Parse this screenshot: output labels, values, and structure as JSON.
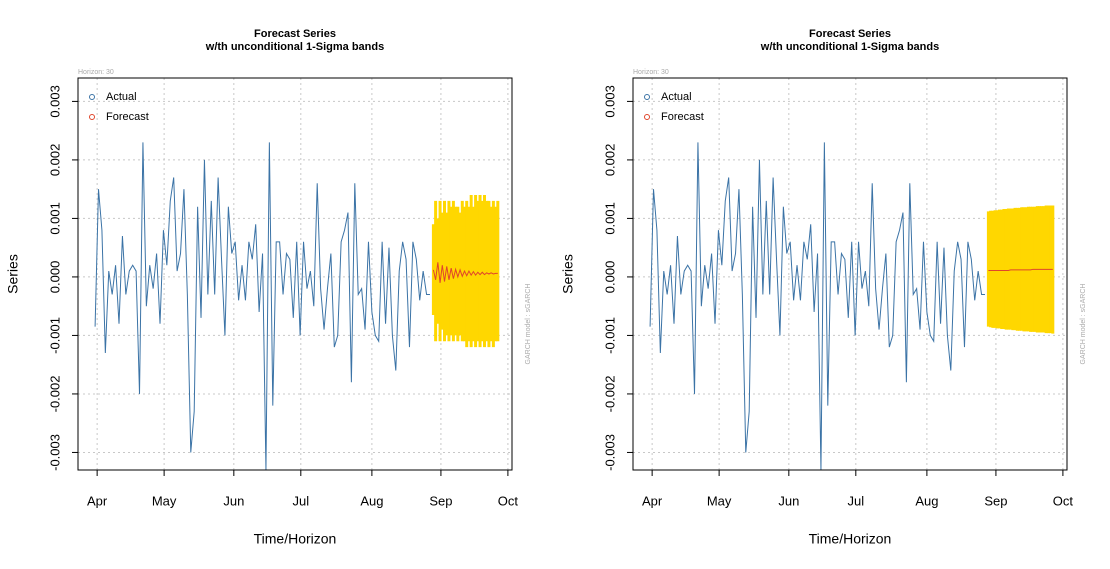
{
  "chart_data": [
    {
      "type": "line",
      "title": "Forecast Series",
      "subtitle": "w/th unconditional 1-Sigma bands",
      "x_label": "Time/Horizon",
      "y_label": "Series",
      "horizon_note": "Horizon: 30",
      "model_note": "GARCH model : sGARCH",
      "xlim": [
        -5,
        122
      ],
      "ylim": [
        -0.0033,
        0.0034
      ],
      "grid": true,
      "legend": "top-left",
      "xticks": [
        {
          "value": 0.6,
          "label": "Apr"
        },
        {
          "value": 20.2,
          "label": "May"
        },
        {
          "value": 40.6,
          "label": "Jun"
        },
        {
          "value": 60.2,
          "label": "Jul"
        },
        {
          "value": 81,
          "label": "Aug"
        },
        {
          "value": 101.2,
          "label": "Sep"
        },
        {
          "value": 120.8,
          "label": "Oct"
        }
      ],
      "yticks": [
        -0.003,
        -0.002,
        -0.001,
        {
          "value": 0,
          "label": "0.000"
        },
        0.001,
        0.002,
        0.003
      ],
      "series": [
        {
          "name": "Actual",
          "color": "#3b73a6",
          "x": [
            0,
            1,
            2,
            3,
            4,
            5,
            6,
            7,
            8,
            9,
            10,
            11,
            12,
            13,
            14,
            15,
            16,
            17,
            18,
            19,
            20,
            21,
            22,
            23,
            24,
            25,
            26,
            27,
            28,
            29,
            30,
            31,
            32,
            33,
            34,
            35,
            36,
            37,
            38,
            39,
            40,
            41,
            42,
            43,
            44,
            45,
            46,
            47,
            48,
            49,
            50,
            51,
            52,
            53,
            54,
            55,
            56,
            57,
            58,
            59,
            60,
            61,
            62,
            63,
            64,
            65,
            66,
            67,
            68,
            69,
            70,
            71,
            72,
            73,
            74,
            75,
            76,
            77,
            78,
            79,
            80,
            81,
            82,
            83,
            84,
            85,
            86,
            87,
            88,
            89,
            90,
            91,
            92,
            93,
            94,
            95,
            96,
            97,
            98
          ],
          "values": [
            -0.00085,
            0.0015,
            0.0008,
            -0.0013,
            0.0001,
            -0.0003,
            0.0002,
            -0.0008,
            0.0007,
            -0.0003,
            0.0001,
            0.0002,
            0.0001,
            -0.002,
            0.0023,
            -0.0005,
            0.0002,
            -0.0002,
            0.0004,
            -0.0008,
            0.0008,
            0.0002,
            0.0013,
            0.0017,
            0.0001,
            0.0004,
            0.0015,
            -0.0003,
            -0.003,
            -0.0023,
            0.0012,
            -0.0007,
            0.002,
            -0.0003,
            0.0013,
            -0.0003,
            0.0017,
            0.0003,
            -0.001,
            0.0012,
            0.0004,
            0.0006,
            -0.0004,
            0.0002,
            -0.0004,
            0.0006,
            0.0003,
            0.0009,
            -0.0006,
            0.0004,
            -0.0033,
            0.0023,
            -0.0022,
            0.0006,
            0.0006,
            -0.0003,
            0.0004,
            0.0003,
            -0.0007,
            0.0006,
            -0.001,
            0.0006,
            -0.0002,
            0.0001,
            -0.0005,
            0.0016,
            -0.0002,
            -0.0009,
            -0.0002,
            0.0004,
            -0.0012,
            -0.001,
            0.0006,
            0.0008,
            0.0011,
            -0.0018,
            0.0016,
            -0.0003,
            -0.0002,
            -0.0009,
            0.0006,
            -0.0006,
            -0.001,
            -0.0011,
            0.0006,
            -0.0008,
            0.0005,
            -0.001,
            -0.0016,
            0.0001,
            0.0006,
            0.0003,
            -0.0012,
            0.0006,
            0.0003,
            -0.0004,
            0.0001,
            -0.0003,
            -0.0003
          ]
        },
        {
          "name": "Forecast",
          "color": "#e0452b",
          "x": [
            99,
            99.65,
            100.3,
            100.95,
            101.6,
            102.25,
            102.9,
            103.55,
            104.2,
            104.85,
            105.5,
            106.15,
            106.8,
            107.45,
            108.1,
            108.75,
            109.4,
            110.05,
            110.7,
            111.35,
            112,
            112.65,
            113.3,
            113.95,
            114.6,
            115.25,
            115.9,
            116.55,
            117.2,
            117.85
          ],
          "values": [
            0.00012,
            -5e-05,
            0.00025,
            -0.0001,
            0.0002,
            -8e-05,
            0.00018,
            -5e-05,
            0.00015,
            -3e-05,
            0.00013,
            0,
            0.00012,
            1e-05,
            0.0001,
            2e-05,
            0.0001,
            3e-05,
            9e-05,
            3e-05,
            8e-05,
            4e-05,
            8e-05,
            4e-05,
            7e-05,
            5e-05,
            7e-05,
            5e-05,
            6e-05,
            6e-05
          ]
        }
      ],
      "band": {
        "color": "#ffd700",
        "upper": [
          0.0009,
          0.0013,
          0.001,
          0.0013,
          0.0011,
          0.0013,
          0.0011,
          0.0013,
          0.0012,
          0.0013,
          0.0012,
          0.0012,
          0.0011,
          0.0013,
          0.0012,
          0.0013,
          0.0012,
          0.0014,
          0.0012,
          0.0014,
          0.0013,
          0.0014,
          0.0013,
          0.0014,
          0.0013,
          0.0013,
          0.0012,
          0.0013,
          0.0012,
          0.0013
        ],
        "lower": [
          -0.00065,
          -0.0011,
          -0.0008,
          -0.0011,
          -0.0009,
          -0.0011,
          -0.001,
          -0.0011,
          -0.001,
          -0.0011,
          -0.001,
          -0.0011,
          -0.001,
          -0.0011,
          -0.0011,
          -0.0012,
          -0.0011,
          -0.0012,
          -0.0011,
          -0.0012,
          -0.0011,
          -0.0012,
          -0.0011,
          -0.0012,
          -0.0011,
          -0.0012,
          -0.0011,
          -0.0012,
          -0.0011,
          -0.0011
        ]
      }
    },
    {
      "type": "line",
      "title": "Forecast Series",
      "subtitle": "w/th unconditional 1-Sigma bands",
      "x_label": "Time/Horizon",
      "y_label": "Series",
      "horizon_note": "Horizon: 30",
      "model_note": "GARCH model : sGARCH",
      "xlim": [
        -5,
        122
      ],
      "ylim": [
        -0.0033,
        0.0034
      ],
      "grid": true,
      "legend": "top-left",
      "xticks": [
        {
          "value": 0.6,
          "label": "Apr"
        },
        {
          "value": 20.2,
          "label": "May"
        },
        {
          "value": 40.6,
          "label": "Jun"
        },
        {
          "value": 60.2,
          "label": "Jul"
        },
        {
          "value": 81,
          "label": "Aug"
        },
        {
          "value": 101.2,
          "label": "Sep"
        },
        {
          "value": 120.8,
          "label": "Oct"
        }
      ],
      "yticks": [
        -0.003,
        -0.002,
        -0.001,
        {
          "value": 0,
          "label": "0.000"
        },
        0.001,
        0.002,
        0.003
      ],
      "series": [
        {
          "name": "Actual",
          "color": "#3b73a6",
          "x": [
            0,
            1,
            2,
            3,
            4,
            5,
            6,
            7,
            8,
            9,
            10,
            11,
            12,
            13,
            14,
            15,
            16,
            17,
            18,
            19,
            20,
            21,
            22,
            23,
            24,
            25,
            26,
            27,
            28,
            29,
            30,
            31,
            32,
            33,
            34,
            35,
            36,
            37,
            38,
            39,
            40,
            41,
            42,
            43,
            44,
            45,
            46,
            47,
            48,
            49,
            50,
            51,
            52,
            53,
            54,
            55,
            56,
            57,
            58,
            59,
            60,
            61,
            62,
            63,
            64,
            65,
            66,
            67,
            68,
            69,
            70,
            71,
            72,
            73,
            74,
            75,
            76,
            77,
            78,
            79,
            80,
            81,
            82,
            83,
            84,
            85,
            86,
            87,
            88,
            89,
            90,
            91,
            92,
            93,
            94,
            95,
            96,
            97,
            98
          ],
          "values": [
            -0.00085,
            0.0015,
            0.0008,
            -0.0013,
            0.0001,
            -0.0003,
            0.0002,
            -0.0008,
            0.0007,
            -0.0003,
            0.0001,
            0.0002,
            0.0001,
            -0.002,
            0.0023,
            -0.0005,
            0.0002,
            -0.0002,
            0.0004,
            -0.0008,
            0.0008,
            0.0002,
            0.0013,
            0.0017,
            0.0001,
            0.0004,
            0.0015,
            -0.0003,
            -0.003,
            -0.0023,
            0.0012,
            -0.0007,
            0.002,
            -0.0003,
            0.0013,
            -0.0003,
            0.0017,
            0.0003,
            -0.001,
            0.0012,
            0.0004,
            0.0006,
            -0.0004,
            0.0002,
            -0.0004,
            0.0006,
            0.0003,
            0.0009,
            -0.0006,
            0.0004,
            -0.0033,
            0.0023,
            -0.0022,
            0.0006,
            0.0006,
            -0.0003,
            0.0004,
            0.0003,
            -0.0007,
            0.0006,
            -0.001,
            0.0006,
            -0.0002,
            0.0001,
            -0.0005,
            0.0016,
            -0.0002,
            -0.0009,
            -0.0002,
            0.0004,
            -0.0012,
            -0.001,
            0.0006,
            0.0008,
            0.0011,
            -0.0018,
            0.0016,
            -0.0003,
            -0.0002,
            -0.0009,
            0.0006,
            -0.0006,
            -0.001,
            -0.0011,
            0.0006,
            -0.0008,
            0.0005,
            -0.001,
            -0.0016,
            0.0001,
            0.0006,
            0.0003,
            -0.0012,
            0.0006,
            0.0003,
            -0.0004,
            0.0001,
            -0.0003,
            -0.0003
          ]
        },
        {
          "name": "Forecast",
          "color": "#e0452b",
          "x": [
            99,
            99.65,
            100.3,
            100.95,
            101.6,
            102.25,
            102.9,
            103.55,
            104.2,
            104.85,
            105.5,
            106.15,
            106.8,
            107.45,
            108.1,
            108.75,
            109.4,
            110.05,
            110.7,
            111.35,
            112,
            112.65,
            113.3,
            113.95,
            114.6,
            115.25,
            115.9,
            116.55,
            117.2,
            117.85
          ],
          "values": [
            0.00011,
            0.00011,
            0.00011,
            0.00011,
            0.00011,
            0.00011,
            0.00011,
            0.00011,
            0.00011,
            0.00011,
            0.00012,
            0.00012,
            0.00012,
            0.00012,
            0.00012,
            0.00012,
            0.00012,
            0.00012,
            0.00012,
            0.00012,
            0.00013,
            0.00013,
            0.00013,
            0.00013,
            0.00013,
            0.00013,
            0.00013,
            0.00013,
            0.00013,
            0.00013
          ]
        }
      ],
      "band": {
        "color": "#ffd700",
        "upper": [
          0.00112,
          0.00113,
          0.00113,
          0.00114,
          0.00114,
          0.00115,
          0.00115,
          0.00116,
          0.00116,
          0.00117,
          0.00117,
          0.00117,
          0.00118,
          0.00118,
          0.00118,
          0.00119,
          0.00119,
          0.00119,
          0.0012,
          0.0012,
          0.0012,
          0.0012,
          0.00121,
          0.00121,
          0.00121,
          0.00121,
          0.00122,
          0.00122,
          0.00122,
          0.00122
        ],
        "lower": [
          -0.00085,
          -0.00086,
          -0.00087,
          -0.00087,
          -0.00088,
          -0.00088,
          -0.00089,
          -0.00089,
          -0.0009,
          -0.0009,
          -0.0009,
          -0.00091,
          -0.00091,
          -0.00092,
          -0.00092,
          -0.00092,
          -0.00093,
          -0.00093,
          -0.00093,
          -0.00094,
          -0.00094,
          -0.00094,
          -0.00095,
          -0.00095,
          -0.00095,
          -0.00095,
          -0.00096,
          -0.00096,
          -0.00096,
          -0.00097
        ]
      }
    }
  ]
}
